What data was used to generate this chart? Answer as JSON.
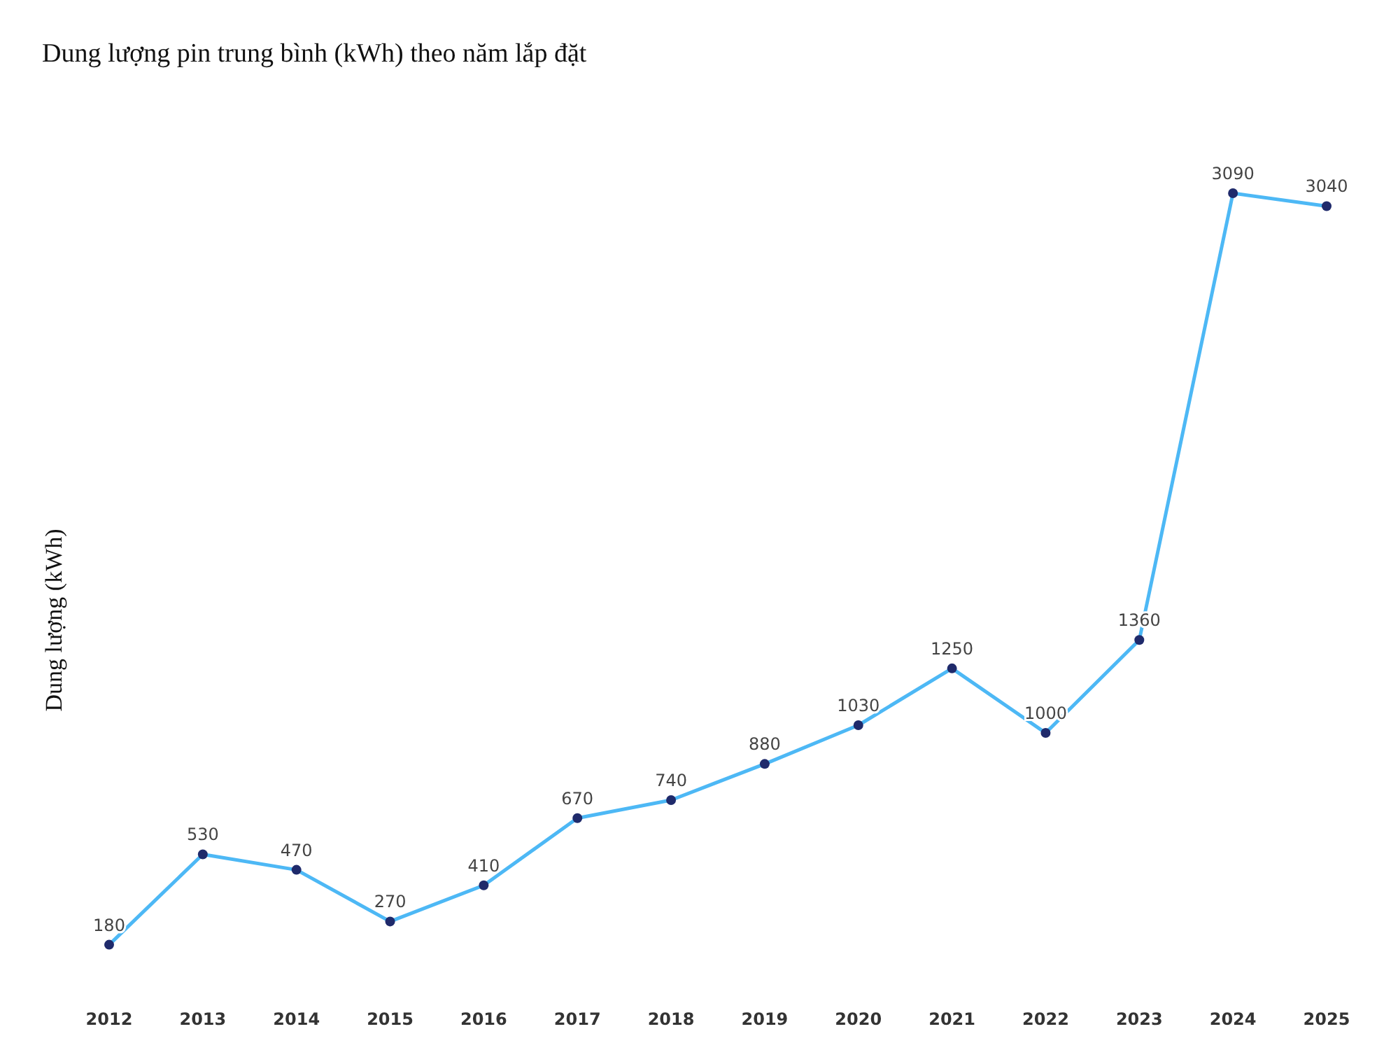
{
  "chart_data": {
    "type": "line",
    "title": "Dung lượng pin trung bình (kWh) theo năm lắp đặt",
    "ylabel": "Dung lượng (kWh)",
    "categories": [
      "2012",
      "2013",
      "2014",
      "2015",
      "2016",
      "2017",
      "2018",
      "2019",
      "2020",
      "2021",
      "2022",
      "2023",
      "2024",
      "2025"
    ],
    "series": [
      {
        "color": "#4db8f5",
        "values": [
          180,
          530,
          470,
          270,
          410,
          670,
          740,
          880,
          1030,
          1250,
          1000,
          1360,
          3090,
          3040
        ]
      }
    ],
    "data_labels": true,
    "marker": "circle"
  }
}
